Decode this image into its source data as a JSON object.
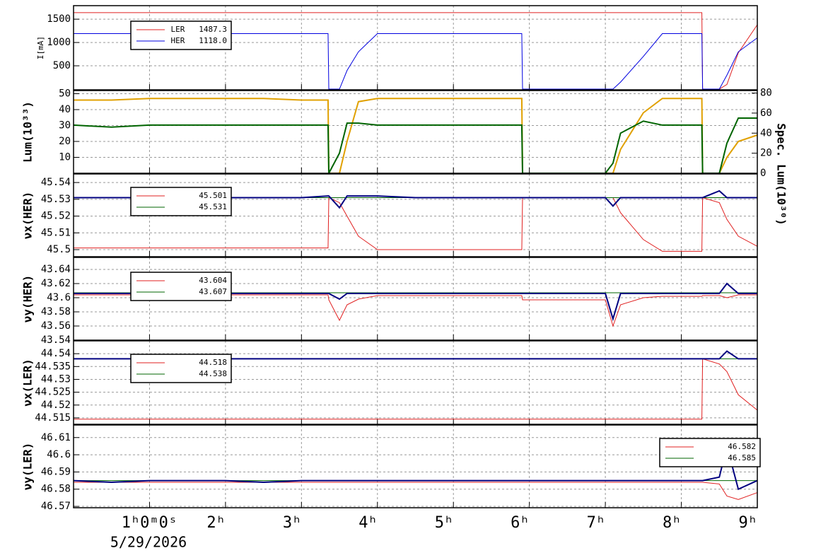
{
  "chart_data": [
    {
      "type": "line",
      "ylabel": "I[mA]",
      "xlim": [
        0,
        9
      ],
      "ylim": [
        -15,
        1790
      ],
      "yticks": [
        500,
        1000,
        1500
      ],
      "xticks": [
        1,
        2,
        3,
        4,
        5,
        6,
        7,
        8,
        9
      ],
      "grid": true,
      "legend": "upper left",
      "x": [
        0,
        0.5,
        1,
        1.5,
        2,
        2.5,
        3,
        3.35,
        3.36,
        3.5,
        3.6,
        3.75,
        4,
        4.5,
        5,
        5.5,
        5.9,
        5.91,
        6.5,
        7,
        7.1,
        7.2,
        7.5,
        7.75,
        8,
        8.27,
        8.28,
        8.5,
        8.6,
        8.75,
        9
      ],
      "series": [
        {
          "name": "LER   1487.3",
          "color": "#e02020",
          "values": [
            1640,
            1640,
            1640,
            1640,
            1640,
            1640,
            1640,
            1640,
            1640,
            1640,
            1640,
            1640,
            1640,
            1640,
            1640,
            1640,
            1640,
            1640,
            1640,
            1640,
            1640,
            1640,
            1640,
            1640,
            1640,
            1640,
            0,
            0,
            100,
            780,
            1380
          ]
        },
        {
          "name": "HER   1118.0",
          "color": "#0000e0",
          "values": [
            1190,
            1190,
            1190,
            1190,
            1190,
            1190,
            1190,
            1190,
            0,
            0,
            400,
            800,
            1190,
            1190,
            1190,
            1190,
            1190,
            0,
            0,
            0,
            0,
            150,
            700,
            1190,
            1190,
            1190,
            0,
            0,
            300,
            800,
            1100
          ]
        }
      ]
    },
    {
      "type": "line",
      "ylabel": "Lum(10³³)",
      "y2label": "Spec. Lum(10³⁰)",
      "xlim": [
        0,
        9
      ],
      "ylim": [
        0,
        52
      ],
      "yticks": [
        10,
        20,
        30,
        40,
        50
      ],
      "y2lim": [
        0,
        82.5
      ],
      "y2ticks": [
        0,
        20,
        40,
        60,
        80
      ],
      "xticks": [
        1,
        2,
        3,
        4,
        5,
        6,
        7,
        8,
        9
      ],
      "grid": true,
      "x": [
        0,
        0.5,
        1,
        1.5,
        2,
        2.5,
        3,
        3.35,
        3.36,
        3.5,
        3.6,
        3.75,
        4,
        4.5,
        5,
        5.5,
        5.9,
        5.91,
        6.5,
        7,
        7.1,
        7.2,
        7.5,
        7.75,
        8,
        8.27,
        8.28,
        8.5,
        8.6,
        8.75,
        9
      ],
      "series": [
        {
          "color": "#e0a000",
          "values": [
            46,
            46,
            47,
            47,
            47,
            47,
            46,
            46,
            0,
            0,
            20,
            45,
            47,
            47,
            47,
            47,
            47,
            0,
            0,
            0,
            0,
            15,
            38,
            47,
            47,
            47,
            0,
            0,
            10,
            20,
            24
          ]
        },
        {
          "color": "#006400",
          "axis": "y2",
          "values": [
            48,
            46,
            48,
            48,
            48,
            48,
            48,
            48,
            0,
            20,
            50,
            50,
            48,
            48,
            48,
            48,
            48,
            0,
            0,
            0,
            10,
            40,
            52,
            48,
            48,
            48,
            0,
            0,
            30,
            55,
            55
          ]
        }
      ]
    },
    {
      "type": "line",
      "ylabel": "νx(HER)",
      "xlim": [
        0,
        9
      ],
      "ylim": [
        45.4958,
        45.5451
      ],
      "yticks": [
        45.5,
        45.51,
        45.52,
        45.53,
        45.54
      ],
      "xticks": [
        1,
        2,
        3,
        4,
        5,
        6,
        7,
        8,
        9
      ],
      "grid": true,
      "legend": "upper left",
      "x": [
        0,
        0.5,
        1,
        1.5,
        2,
        2.5,
        3,
        3.35,
        3.36,
        3.5,
        3.6,
        3.75,
        4,
        4.5,
        5,
        5.5,
        5.9,
        5.91,
        6.5,
        7,
        7.1,
        7.2,
        7.5,
        7.75,
        8,
        8.27,
        8.28,
        8.5,
        8.6,
        8.75,
        9
      ],
      "series": [
        {
          "name": "45.501",
          "color": "#e02020",
          "values": [
            45.501,
            45.501,
            45.501,
            45.501,
            45.501,
            45.501,
            45.501,
            45.501,
            45.531,
            45.528,
            45.52,
            45.508,
            45.5,
            45.5,
            45.5,
            45.5,
            45.5,
            45.531,
            45.531,
            45.531,
            45.531,
            45.522,
            45.506,
            45.499,
            45.499,
            45.499,
            45.531,
            45.528,
            45.518,
            45.508,
            45.502
          ]
        },
        {
          "name": "45.531",
          "color": "#006400",
          "values": [
            45.531,
            45.531,
            45.531,
            45.531,
            45.531,
            45.531,
            45.531,
            45.531,
            45.531,
            45.531,
            45.531,
            45.531,
            45.531,
            45.531,
            45.531,
            45.531,
            45.531,
            45.531,
            45.531,
            45.531,
            45.531,
            45.531,
            45.531,
            45.531,
            45.531,
            45.531,
            45.531,
            45.531,
            45.531,
            45.531,
            45.531
          ]
        },
        {
          "color": "#000080",
          "values": [
            45.531,
            45.531,
            45.531,
            45.531,
            45.531,
            45.531,
            45.531,
            45.532,
            45.532,
            45.525,
            45.532,
            45.532,
            45.532,
            45.531,
            45.531,
            45.531,
            45.531,
            45.531,
            45.531,
            45.531,
            45.526,
            45.531,
            45.531,
            45.531,
            45.531,
            45.531,
            45.531,
            45.535,
            45.531,
            45.531,
            45.531
          ]
        }
      ]
    },
    {
      "type": "line",
      "ylabel": "νy(HER)",
      "xlim": [
        0,
        9
      ],
      "ylim": [
        43.54,
        43.657
      ],
      "yticks": [
        43.54,
        43.56,
        43.58,
        43.6,
        43.62,
        43.64
      ],
      "xticks": [
        1,
        2,
        3,
        4,
        5,
        6,
        7,
        8,
        9
      ],
      "grid": true,
      "legend": "upper left",
      "x": [
        0,
        0.5,
        1,
        1.5,
        2,
        2.5,
        3,
        3.35,
        3.36,
        3.5,
        3.6,
        3.75,
        4,
        4.5,
        5,
        5.5,
        5.9,
        5.91,
        6.5,
        7,
        7.1,
        7.2,
        7.5,
        7.75,
        8,
        8.27,
        8.28,
        8.5,
        8.6,
        8.75,
        9
      ],
      "series": [
        {
          "name": "43.604",
          "color": "#e02020",
          "values": [
            43.604,
            43.604,
            43.604,
            43.604,
            43.604,
            43.604,
            43.604,
            43.604,
            43.597,
            43.568,
            43.59,
            43.598,
            43.603,
            43.603,
            43.603,
            43.603,
            43.603,
            43.597,
            43.597,
            43.597,
            43.56,
            43.59,
            43.6,
            43.602,
            43.602,
            43.602,
            43.603,
            43.603,
            43.6,
            43.604,
            43.604
          ]
        },
        {
          "name": "43.607",
          "color": "#006400",
          "values": [
            43.607,
            43.607,
            43.607,
            43.607,
            43.607,
            43.607,
            43.607,
            43.607,
            43.607,
            43.607,
            43.607,
            43.607,
            43.607,
            43.607,
            43.607,
            43.607,
            43.607,
            43.607,
            43.607,
            43.607,
            43.607,
            43.607,
            43.607,
            43.607,
            43.607,
            43.607,
            43.607,
            43.607,
            43.607,
            43.607,
            43.607
          ]
        },
        {
          "color": "#000080",
          "values": [
            43.606,
            43.606,
            43.606,
            43.606,
            43.606,
            43.606,
            43.606,
            43.606,
            43.606,
            43.598,
            43.606,
            43.606,
            43.606,
            43.606,
            43.606,
            43.606,
            43.606,
            43.606,
            43.606,
            43.606,
            43.57,
            43.606,
            43.606,
            43.606,
            43.606,
            43.606,
            43.606,
            43.606,
            43.62,
            43.606,
            43.606
          ]
        }
      ]
    },
    {
      "type": "line",
      "ylabel": "νx(LER)",
      "xlim": [
        0,
        9
      ],
      "ylim": [
        44.5125,
        44.545
      ],
      "yticks": [
        44.515,
        44.52,
        44.525,
        44.53,
        44.535,
        44.54
      ],
      "xticks": [
        1,
        2,
        3,
        4,
        5,
        6,
        7,
        8,
        9
      ],
      "grid": true,
      "legend": "upper left",
      "x": [
        0,
        0.5,
        1,
        1.5,
        2,
        2.5,
        3,
        3.35,
        3.36,
        3.5,
        3.6,
        3.75,
        4,
        4.5,
        5,
        5.5,
        5.9,
        5.91,
        6.5,
        7,
        7.1,
        7.2,
        7.5,
        7.75,
        8,
        8.27,
        8.28,
        8.5,
        8.6,
        8.75,
        9
      ],
      "series": [
        {
          "name": "44.518",
          "color": "#e02020",
          "values": [
            44.5145,
            44.5145,
            44.5145,
            44.5145,
            44.5145,
            44.5145,
            44.5145,
            44.5145,
            44.5145,
            44.5145,
            44.5145,
            44.5145,
            44.5145,
            44.5145,
            44.5145,
            44.5145,
            44.5145,
            44.5145,
            44.5145,
            44.5145,
            44.5145,
            44.5145,
            44.5145,
            44.5145,
            44.5145,
            44.5145,
            44.538,
            44.536,
            44.533,
            44.524,
            44.518
          ]
        },
        {
          "name": "44.538",
          "color": "#006400",
          "values": [
            44.538,
            44.538,
            44.538,
            44.538,
            44.538,
            44.538,
            44.538,
            44.538,
            44.538,
            44.538,
            44.538,
            44.538,
            44.538,
            44.538,
            44.538,
            44.538,
            44.538,
            44.538,
            44.538,
            44.538,
            44.538,
            44.538,
            44.538,
            44.538,
            44.538,
            44.538,
            44.538,
            44.538,
            44.538,
            44.538,
            44.538
          ]
        },
        {
          "color": "#000080",
          "values": [
            44.538,
            44.538,
            44.538,
            44.538,
            44.538,
            44.538,
            44.538,
            44.538,
            44.538,
            44.538,
            44.538,
            44.538,
            44.538,
            44.538,
            44.538,
            44.538,
            44.538,
            44.538,
            44.538,
            44.538,
            44.538,
            44.538,
            44.538,
            44.538,
            44.538,
            44.538,
            44.538,
            44.538,
            44.541,
            44.538,
            44.538
          ]
        }
      ]
    },
    {
      "type": "line",
      "ylabel": "νy(LER)",
      "xlim": [
        0,
        9
      ],
      "ylim": [
        46.5692,
        46.6173
      ],
      "yticks": [
        46.57,
        46.58,
        46.59,
        46.6,
        46.61
      ],
      "grid": true,
      "legend": "upper right",
      "date": "5/29/2026",
      "xticks": [
        {
          "value": 1,
          "label": "1ʰ0ᵐ0ˢ"
        },
        {
          "value": 2,
          "label": "2ʰ"
        },
        {
          "value": 3,
          "label": "3ʰ"
        },
        {
          "value": 4,
          "label": "4ʰ"
        },
        {
          "value": 5,
          "label": "5ʰ"
        },
        {
          "value": 6,
          "label": "6ʰ"
        },
        {
          "value": 7,
          "label": "7ʰ"
        },
        {
          "value": 8,
          "label": "8ʰ"
        },
        {
          "value": 9,
          "label": "9ʰ"
        }
      ],
      "x": [
        0,
        0.5,
        1,
        1.5,
        2,
        2.5,
        3,
        3.35,
        3.36,
        3.5,
        3.6,
        3.75,
        4,
        4.5,
        5,
        5.5,
        5.9,
        5.91,
        6.5,
        7,
        7.1,
        7.2,
        7.5,
        7.75,
        8,
        8.27,
        8.28,
        8.5,
        8.6,
        8.75,
        9
      ],
      "series": [
        {
          "name": "46.582",
          "color": "#e02020",
          "values": [
            46.584,
            46.584,
            46.584,
            46.584,
            46.584,
            46.584,
            46.584,
            46.584,
            46.584,
            46.584,
            46.584,
            46.584,
            46.584,
            46.584,
            46.584,
            46.584,
            46.584,
            46.584,
            46.584,
            46.584,
            46.584,
            46.584,
            46.584,
            46.584,
            46.584,
            46.584,
            46.584,
            46.583,
            46.576,
            46.574,
            46.578
          ]
        },
        {
          "name": "46.585",
          "color": "#006400",
          "values": [
            46.585,
            46.585,
            46.585,
            46.585,
            46.585,
            46.585,
            46.585,
            46.585,
            46.585,
            46.585,
            46.585,
            46.585,
            46.585,
            46.585,
            46.585,
            46.585,
            46.585,
            46.585,
            46.585,
            46.585,
            46.585,
            46.585,
            46.585,
            46.585,
            46.585,
            46.585,
            46.585,
            46.585,
            46.585,
            46.585,
            46.585
          ]
        },
        {
          "color": "#000080",
          "values": [
            46.585,
            46.584,
            46.585,
            46.585,
            46.585,
            46.584,
            46.585,
            46.585,
            46.585,
            46.585,
            46.585,
            46.585,
            46.585,
            46.585,
            46.585,
            46.585,
            46.585,
            46.585,
            46.585,
            46.585,
            46.585,
            46.585,
            46.585,
            46.585,
            46.585,
            46.585,
            46.585,
            46.587,
            46.605,
            46.58,
            46.585
          ]
        }
      ]
    }
  ]
}
